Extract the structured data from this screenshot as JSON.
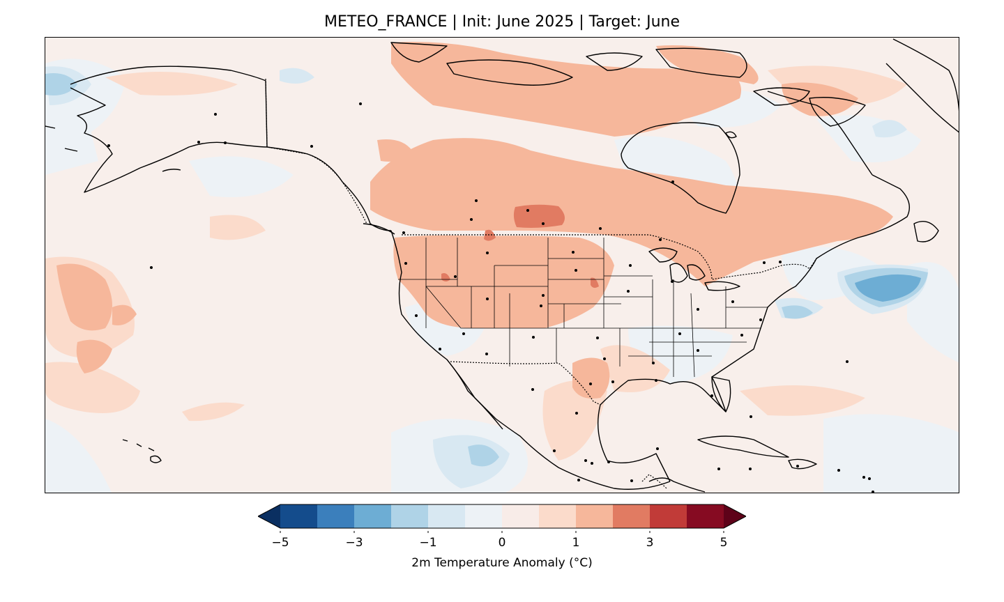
{
  "title": "METEO_FRANCE | Init: June 2025 | Target: June",
  "colorbar": {
    "label": "2m Temperature Anomaly (°C)",
    "tick_labels": [
      "−5",
      "−3",
      "−1",
      "0",
      "1",
      "3",
      "5"
    ],
    "tick_values": [
      -5,
      -3,
      -1,
      0,
      1,
      3,
      5
    ],
    "bounds": [
      -5,
      -4,
      -3,
      -2,
      -1,
      -0.5,
      0,
      0.5,
      1,
      2,
      3,
      4,
      5
    ],
    "colors": [
      "#144c8c",
      "#3b7fbc",
      "#6dadd4",
      "#afd3e7",
      "#d8e8f2",
      "#edf2f6",
      "#f8ece8",
      "#fbdbcb",
      "#f6b79b",
      "#e17b62",
      "#c13b38",
      "#860b22"
    ],
    "under_color": "#0a2f61",
    "over_color": "#5e0219",
    "extend": "both"
  },
  "map": {
    "background_color": "#f8efeb",
    "region": "North America",
    "variable": "2m temperature anomaly"
  }
}
